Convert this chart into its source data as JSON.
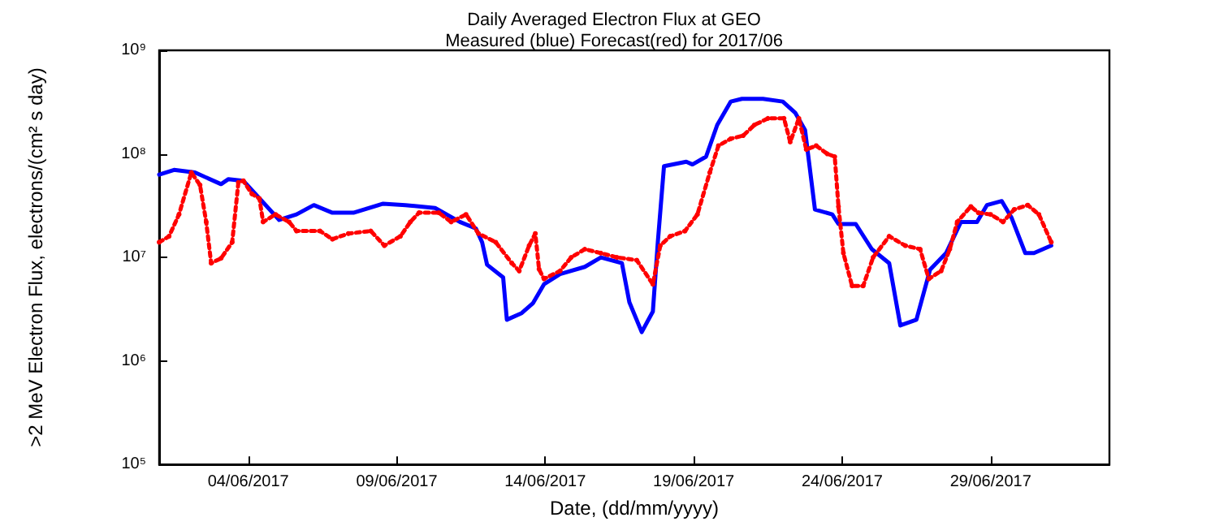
{
  "chart_data": {
    "type": "line",
    "title": "Daily Averaged Electron Flux at GEO",
    "subtitle": "Measured (blue) Forecast(red) for 2017/06",
    "xlabel": "Date, (dd/mm/yyyy)",
    "ylabel": ">2 MeV Electron Flux, electrons/(cm² s day)",
    "log": "y",
    "grid": false,
    "xlim": [
      "2017-06-01T00:00",
      "2017-07-03T00:00"
    ],
    "xticks": [
      {
        "value": "2017-06-04T00:00",
        "label": "04/06/2017"
      },
      {
        "value": "2017-06-09T00:00",
        "label": "09/06/2017"
      },
      {
        "value": "2017-06-14T00:00",
        "label": "14/06/2017"
      },
      {
        "value": "2017-06-19T00:00",
        "label": "19/06/2017"
      },
      {
        "value": "2017-06-24T00:00",
        "label": "24/06/2017"
      },
      {
        "value": "2017-06-29T00:00",
        "label": "29/06/2017"
      }
    ],
    "ylim": [
      100000,
      1000000000
    ],
    "yticks": [
      {
        "value": 100000,
        "label": "10⁵"
      },
      {
        "value": 1000000,
        "label": "10⁶"
      },
      {
        "value": 10000000,
        "label": "10⁷"
      },
      {
        "value": 100000000,
        "label": "10⁸"
      },
      {
        "value": 1000000000,
        "label": "10⁹"
      }
    ],
    "series": [
      {
        "color": "#0000ff",
        "marker": "none",
        "line_style": "solid",
        "x": [
          "2017-06-01T00:00",
          "2017-06-01T12:00",
          "2017-06-02T05:00",
          "2017-06-03T02:00",
          "2017-06-03T08:00",
          "2017-06-03T20:00",
          "2017-06-04T13:00",
          "2017-06-05T01:00",
          "2017-06-05T15:00",
          "2017-06-06T05:00",
          "2017-06-06T20:00",
          "2017-06-07T13:00",
          "2017-06-08T13:00",
          "2017-06-09T07:00",
          "2017-06-10T07:00",
          "2017-06-11T03:00",
          "2017-06-11T16:00",
          "2017-06-11T21:00",
          "2017-06-12T01:00",
          "2017-06-12T14:00",
          "2017-06-12T17:00",
          "2017-06-13T05:00",
          "2017-06-13T14:00",
          "2017-06-13T23:00",
          "2017-06-14T12:00",
          "2017-06-15T08:00",
          "2017-06-15T21:00",
          "2017-06-16T14:00",
          "2017-06-16T20:00",
          "2017-06-17T06:00",
          "2017-06-17T15:00",
          "2017-06-17T19:00",
          "2017-06-18T00:00",
          "2017-06-18T18:00",
          "2017-06-18T23:00",
          "2017-06-19T10:00",
          "2017-06-19T19:00",
          "2017-06-20T06:00",
          "2017-06-20T15:00",
          "2017-06-21T08:00",
          "2017-06-22T00:00",
          "2017-06-22T10:00",
          "2017-06-22T18:00",
          "2017-06-23T02:00",
          "2017-06-23T16:00",
          "2017-06-23T21:00",
          "2017-06-24T11:00",
          "2017-06-25T00:00",
          "2017-06-25T14:00",
          "2017-06-25T23:00",
          "2017-06-26T12:00",
          "2017-06-26T23:00",
          "2017-06-27T12:00",
          "2017-06-28T00:00",
          "2017-06-28T13:00",
          "2017-06-28T21:00",
          "2017-06-29T09:00",
          "2017-06-29T17:00",
          "2017-06-30T04:00",
          "2017-06-30T11:00",
          "2017-07-01T01:00"
        ],
        "values": [
          63000000,
          70000000,
          66000000,
          51000000,
          57000000,
          55000000,
          33000000,
          23000000,
          26000000,
          32000000,
          27000000,
          27000000,
          33000000,
          32000000,
          30000000,
          22000000,
          19000000,
          14000000,
          8500000,
          6400000,
          2500000,
          2900000,
          3600000,
          5500000,
          6900000,
          8100000,
          10000000,
          8800000,
          3700000,
          1900000,
          3000000,
          14000000,
          76000000,
          84000000,
          79000000,
          94000000,
          190000000,
          320000000,
          340000000,
          340000000,
          320000000,
          250000000,
          170000000,
          29000000,
          26000000,
          21000000,
          21000000,
          12000000,
          8800000,
          2200000,
          2500000,
          7600000,
          11000000,
          22000000,
          22000000,
          32000000,
          35000000,
          24000000,
          11000000,
          11000000,
          13000000
        ]
      },
      {
        "color": "#ff0000",
        "marker": "circle",
        "line_style": "dotted",
        "x": [
          "2017-06-01T00:00",
          "2017-06-01T08:00",
          "2017-06-01T16:00",
          "2017-06-02T02:00",
          "2017-06-02T09:00",
          "2017-06-02T14:00",
          "2017-06-02T18:00",
          "2017-06-03T02:00",
          "2017-06-03T11:00",
          "2017-06-03T16:00",
          "2017-06-03T20:00",
          "2017-06-04T03:00",
          "2017-06-04T09:00",
          "2017-06-04T12:00",
          "2017-06-04T22:00",
          "2017-06-05T09:00",
          "2017-06-05T15:00",
          "2017-06-06T10:00",
          "2017-06-06T20:00",
          "2017-06-07T09:00",
          "2017-06-08T03:00",
          "2017-06-08T14:00",
          "2017-06-09T03:00",
          "2017-06-09T11:00",
          "2017-06-09T18:00",
          "2017-06-10T10:00",
          "2017-06-10T20:00",
          "2017-06-11T08:00",
          "2017-06-11T18:00",
          "2017-06-12T08:00",
          "2017-06-12T21:00",
          "2017-06-13T03:00",
          "2017-06-13T11:00",
          "2017-06-13T16:00",
          "2017-06-13T19:00",
          "2017-06-13T23:00",
          "2017-06-14T12:00",
          "2017-06-14T21:00",
          "2017-06-15T08:00",
          "2017-06-15T21:00",
          "2017-06-16T10:00",
          "2017-06-17T02:00",
          "2017-06-17T15:00",
          "2017-06-17T21:00",
          "2017-06-18T05:00",
          "2017-06-18T17:00",
          "2017-06-19T03:00",
          "2017-06-19T13:00",
          "2017-06-19T20:00",
          "2017-06-20T06:00",
          "2017-06-20T16:00",
          "2017-06-21T01:00",
          "2017-06-21T12:00",
          "2017-06-22T01:00",
          "2017-06-22T06:00",
          "2017-06-22T13:00",
          "2017-06-22T19:00",
          "2017-06-23T03:00",
          "2017-06-23T12:00",
          "2017-06-23T18:00",
          "2017-06-23T21:00",
          "2017-06-24T01:00",
          "2017-06-24T08:00",
          "2017-06-24T17:00",
          "2017-06-25T01:00",
          "2017-06-25T14:00",
          "2017-06-26T03:00",
          "2017-06-26T15:00",
          "2017-06-26T22:00",
          "2017-06-27T08:00",
          "2017-06-27T15:00",
          "2017-06-27T21:00",
          "2017-06-28T08:00",
          "2017-06-28T14:00",
          "2017-06-29T00:00",
          "2017-06-29T10:00",
          "2017-06-29T19:00",
          "2017-06-30T06:00",
          "2017-06-30T15:00",
          "2017-07-01T01:00"
        ],
        "values": [
          14000000,
          16000000,
          26000000,
          66000000,
          50000000,
          22000000,
          8800000,
          9800000,
          14000000,
          53000000,
          55000000,
          41000000,
          37000000,
          22000000,
          26000000,
          22000000,
          18000000,
          18000000,
          15000000,
          17000000,
          18000000,
          13000000,
          16000000,
          22000000,
          27000000,
          27000000,
          22000000,
          26000000,
          17000000,
          14000000,
          8800000,
          7400000,
          13000000,
          17000000,
          7700000,
          6200000,
          7400000,
          10000000,
          12000000,
          11000000,
          10000000,
          9400000,
          5500000,
          13000000,
          16000000,
          18000000,
          26000000,
          66000000,
          120000000,
          140000000,
          150000000,
          190000000,
          220000000,
          220000000,
          130000000,
          220000000,
          110000000,
          120000000,
          100000000,
          94000000,
          31000000,
          11000000,
          5300000,
          5300000,
          10000000,
          16000000,
          13000000,
          12000000,
          6200000,
          7400000,
          12000000,
          22000000,
          31000000,
          27000000,
          26000000,
          22000000,
          29000000,
          32000000,
          26000000,
          14000000
        ]
      }
    ]
  }
}
